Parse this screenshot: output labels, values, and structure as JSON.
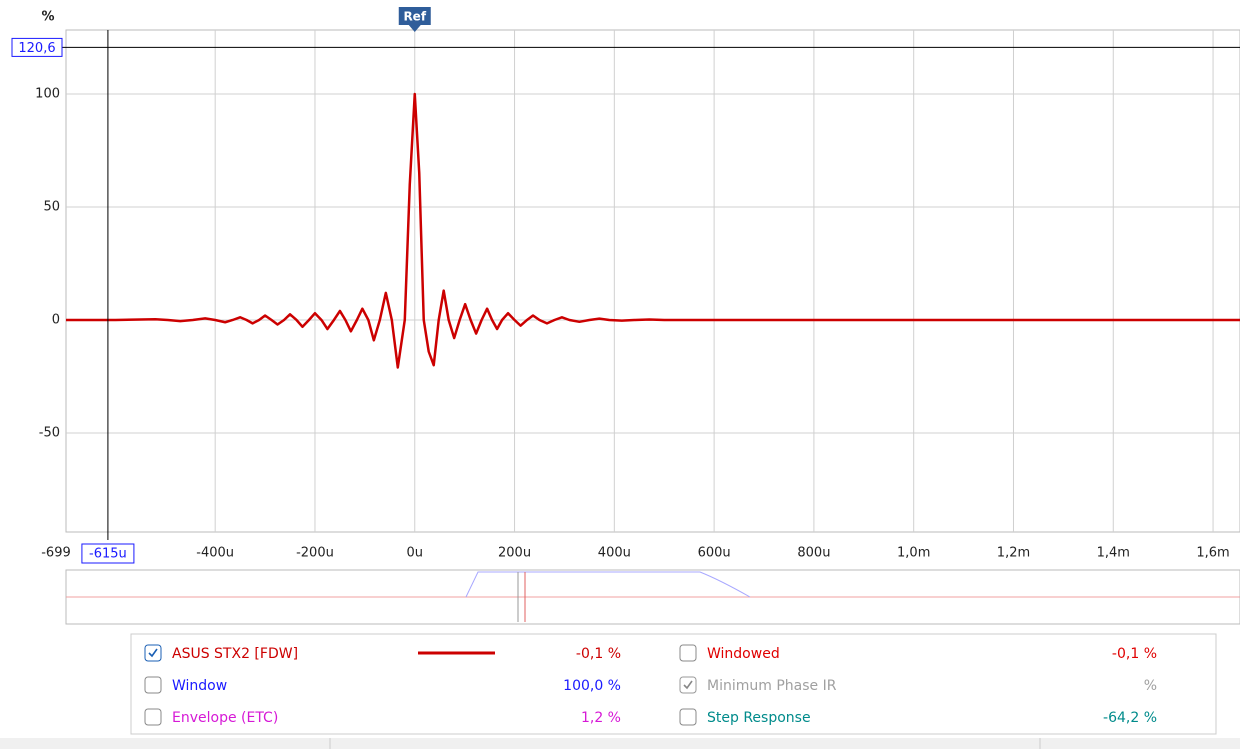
{
  "chart_data": {
    "type": "line",
    "y_label": "%",
    "x": [
      -699,
      -600,
      -520,
      -495,
      -470,
      -445,
      -420,
      -400,
      -380,
      -365,
      -350,
      -337,
      -325,
      -312,
      -300,
      -287,
      -275,
      -262,
      -250,
      -237,
      -225,
      -212,
      -200,
      -187,
      -175,
      -162,
      -150,
      -139,
      -128,
      -116,
      -105,
      -93,
      -82,
      -70,
      -58,
      -46,
      -34,
      -20,
      -10,
      0,
      9,
      18,
      28,
      38,
      48,
      58,
      68,
      79,
      90,
      101,
      112,
      123,
      134,
      145,
      155,
      165,
      175,
      187,
      200,
      212,
      225,
      237,
      250,
      265,
      280,
      295,
      310,
      330,
      350,
      370,
      390,
      415,
      440,
      470,
      500,
      600,
      1654
    ],
    "series": [
      {
        "name": "ASUS STX2 [FDW]",
        "color": "#cc0000",
        "values": [
          0,
          0,
          0.3,
          0,
          -0.5,
          0,
          0.7,
          0,
          -1,
          0,
          1.2,
          0,
          -1.5,
          0,
          2,
          0,
          -2,
          0,
          2.5,
          0,
          -3,
          0,
          3,
          0,
          -4,
          0,
          4,
          0,
          -5,
          0,
          5,
          0,
          -9,
          0,
          12,
          0,
          -21,
          0,
          60,
          100,
          65,
          0,
          -14,
          -20,
          0,
          13,
          0,
          -8,
          0,
          7,
          0,
          -6,
          0,
          5,
          0,
          -4,
          0,
          3,
          0,
          -2.5,
          0,
          2,
          0,
          -1.5,
          0,
          1.2,
          0,
          -0.8,
          0,
          0.6,
          0,
          -0.3,
          0,
          0.2,
          0,
          0,
          0
        ]
      }
    ],
    "xlim": [
      -699,
      1654
    ],
    "ylim": [
      -93.8,
      128.3
    ],
    "xstart_label": "-699",
    "xticks": [
      {
        "value": -400,
        "label": "-400u"
      },
      {
        "value": -200,
        "label": "-200u"
      },
      {
        "value": 0,
        "label": "0u"
      },
      {
        "value": 200,
        "label": "200u"
      },
      {
        "value": 400,
        "label": "400u"
      },
      {
        "value": 600,
        "label": "600u"
      },
      {
        "value": 800,
        "label": "800u"
      },
      {
        "value": 1000,
        "label": "1,0m"
      },
      {
        "value": 1200,
        "label": "1,2m"
      },
      {
        "value": 1400,
        "label": "1,4m"
      },
      {
        "value": 1600,
        "label": "1,6m"
      }
    ],
    "yticks": [
      -50,
      0,
      50,
      100
    ],
    "grid": true,
    "cursor": {
      "x": -615,
      "x_label": "-615u",
      "y": 120.6,
      "y_label": "120,6"
    },
    "ref": {
      "x": 0,
      "label": "Ref"
    }
  },
  "panel": {
    "items": [
      {
        "readout": "-0,1 %",
        "checked": true
      },
      {
        "label": "Windowed",
        "readout": "-0,1 %",
        "checked": false,
        "color": "#e00000"
      },
      {
        "label": "Window",
        "readout": "100,0 %",
        "checked": false,
        "color": "#1a1aff"
      },
      {
        "label": "Minimum Phase IR",
        "readout": "%",
        "checked": true,
        "color": "#a0a0a0"
      },
      {
        "label": "Envelope (ETC)",
        "readout": "1,2 %",
        "checked": false,
        "color": "#d619d6"
      },
      {
        "label": "Step Response",
        "readout": "-64,2 %",
        "checked": false,
        "color": "#008b8b"
      }
    ]
  }
}
